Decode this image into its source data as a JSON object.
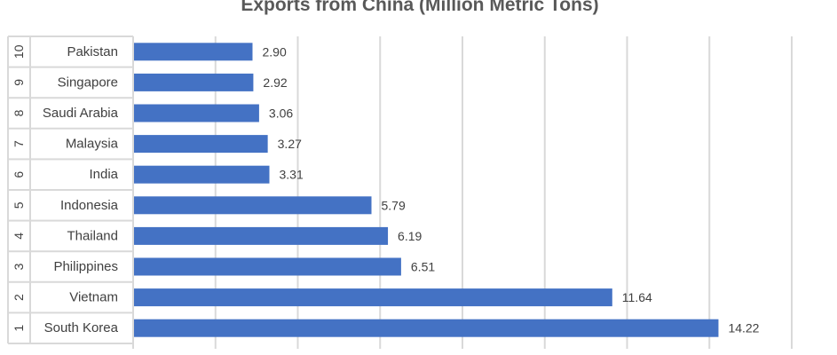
{
  "chart_data": {
    "type": "bar",
    "orientation": "horizontal",
    "title": "Exports from China (Million Metric Tons)",
    "xlabel": "",
    "ylabel": "",
    "ranks": [
      "10",
      "9",
      "8",
      "7",
      "6",
      "5",
      "4",
      "3",
      "2",
      "1"
    ],
    "categories": [
      "Pakistan",
      "Singapore",
      "Saudi Arabia",
      "Malaysia",
      "India",
      "Indonesia",
      "Thailand",
      "Philippines",
      "Vietnam",
      "South Korea"
    ],
    "values": [
      2.9,
      2.92,
      3.06,
      3.27,
      3.31,
      5.79,
      6.19,
      6.51,
      11.64,
      14.22
    ],
    "data_labels": [
      "2.90",
      "2.92",
      "3.06",
      "3.27",
      "3.31",
      "5.79",
      "6.19",
      "6.51",
      "11.64",
      "14.22"
    ],
    "xlim": [
      0,
      16
    ],
    "grid": "vertical",
    "legend": "none",
    "colors": {
      "bar": "#4472C4",
      "grid": "#D9D9D9",
      "axis_text": "#404040",
      "title": "#595959"
    }
  }
}
